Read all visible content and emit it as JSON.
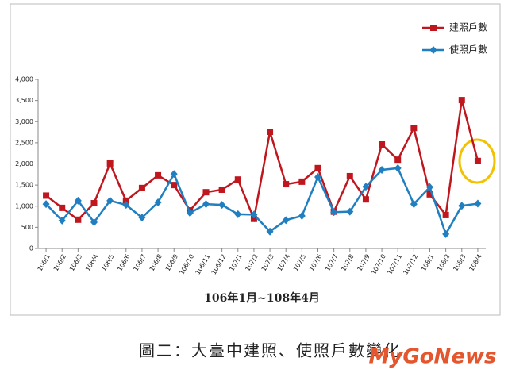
{
  "chart_data": {
    "type": "line",
    "x_label": "106年1月~108年4月",
    "caption": "圖二：大臺中建照、使照戶數變化",
    "watermark": "MyGoNews",
    "categories": [
      "106/1",
      "106/2",
      "106/3",
      "106/4",
      "106/5",
      "106/6",
      "106/7",
      "106/8",
      "106/9",
      "106/10",
      "106/11",
      "106/12",
      "107/1",
      "107/2",
      "107/3",
      "107/4",
      "107/5",
      "107/6",
      "107/7",
      "107/8",
      "107/9",
      "107/10",
      "107/11",
      "107/12",
      "108/1",
      "108/2",
      "108/3",
      "108/4"
    ],
    "series": [
      {
        "name": "建照戶數",
        "color": "#c0161e",
        "marker": "square",
        "values": [
          1250,
          960,
          680,
          1070,
          2010,
          1130,
          1430,
          1730,
          1500,
          900,
          1330,
          1390,
          1630,
          700,
          2760,
          1520,
          1580,
          1900,
          870,
          1710,
          1160,
          2460,
          2100,
          2850,
          1280,
          790,
          3510,
          2070
        ]
      },
      {
        "name": "使照戶數",
        "color": "#1f7fc0",
        "marker": "diamond",
        "values": [
          1050,
          660,
          1130,
          620,
          1130,
          1030,
          730,
          1090,
          1760,
          840,
          1050,
          1030,
          810,
          800,
          400,
          670,
          770,
          1690,
          860,
          870,
          1460,
          1860,
          1900,
          1050,
          1450,
          340,
          1010,
          1060
        ]
      }
    ],
    "ylim": [
      0,
      4000
    ],
    "yticks": [
      0,
      500,
      {
        "value": 1000,
        "label": "1,000"
      },
      {
        "value": 1500,
        "label": "1,500"
      },
      {
        "value": 2000,
        "label": "2,000"
      },
      {
        "value": 2500,
        "label": "2,500"
      },
      {
        "value": 3000,
        "label": "3,000"
      },
      {
        "value": 3500,
        "label": "3,500"
      },
      {
        "value": 4000,
        "label": "4,000"
      }
    ],
    "legend": "top-right"
  }
}
